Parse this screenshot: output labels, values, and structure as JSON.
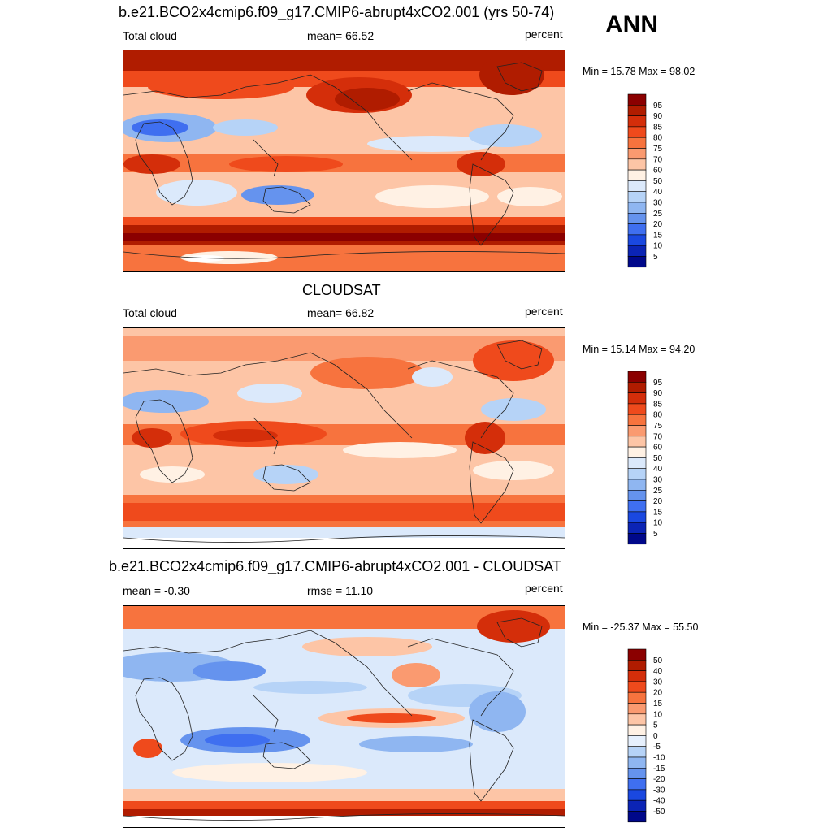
{
  "season": "ANN",
  "panels": [
    {
      "id": "model",
      "title": "b.e21.BCO2x4cmip6.f09_g17.CMIP6-abrupt4xCO2.001 (yrs 50-74)",
      "left_label": "Total cloud",
      "center_label": "mean=  66.52",
      "right_label": "percent",
      "minmax": "Min =  15.78 Max =  98.02",
      "colorbar_levels": [
        "95",
        "90",
        "85",
        "80",
        "75",
        "70",
        "60",
        "50",
        "40",
        "30",
        "25",
        "20",
        "15",
        "10",
        "5"
      ],
      "colorbar_colors": [
        "#8b0000",
        "#b01c00",
        "#d42e0a",
        "#ef4a1c",
        "#f7733e",
        "#fa9a70",
        "#fdc5a6",
        "#fff1e4",
        "#dbe9fb",
        "#b6d3f7",
        "#8fb6f1",
        "#6593ee",
        "#3f6ff0",
        "#1a48e0",
        "#0b24b5",
        "#00088a"
      ]
    },
    {
      "id": "obs",
      "title": "CLOUDSAT",
      "left_label": "Total cloud",
      "center_label": "mean=  66.82",
      "right_label": "percent",
      "minmax": "Min =  15.14 Max =  94.20",
      "colorbar_levels": [
        "95",
        "90",
        "85",
        "80",
        "75",
        "70",
        "60",
        "50",
        "40",
        "30",
        "25",
        "20",
        "15",
        "10",
        "5"
      ],
      "colorbar_colors": [
        "#8b0000",
        "#b01c00",
        "#d42e0a",
        "#ef4a1c",
        "#f7733e",
        "#fa9a70",
        "#fdc5a6",
        "#fff1e4",
        "#dbe9fb",
        "#b6d3f7",
        "#8fb6f1",
        "#6593ee",
        "#3f6ff0",
        "#1a48e0",
        "#0b24b5",
        "#00088a"
      ]
    },
    {
      "id": "diff",
      "title": "b.e21.BCO2x4cmip6.f09_g17.CMIP6-abrupt4xCO2.001 - CLOUDSAT",
      "left_label": "mean =  -0.30",
      "center_label": "rmse =  11.10",
      "right_label": "percent",
      "minmax": "Min = -25.37 Max =  55.50",
      "colorbar_levels": [
        "50",
        "40",
        "30",
        "20",
        "15",
        "10",
        "5",
        "0",
        "-5",
        "-10",
        "-15",
        "-20",
        "-30",
        "-40",
        "-50"
      ],
      "colorbar_colors": [
        "#8b0000",
        "#b01c00",
        "#d42e0a",
        "#ef4a1c",
        "#f7733e",
        "#fa9a70",
        "#fdc5a6",
        "#fff1e4",
        "#e6f0fd",
        "#b6d3f7",
        "#8fb6f1",
        "#6593ee",
        "#3f6ff0",
        "#1a48e0",
        "#0b24b5",
        "#00088a"
      ]
    }
  ]
}
